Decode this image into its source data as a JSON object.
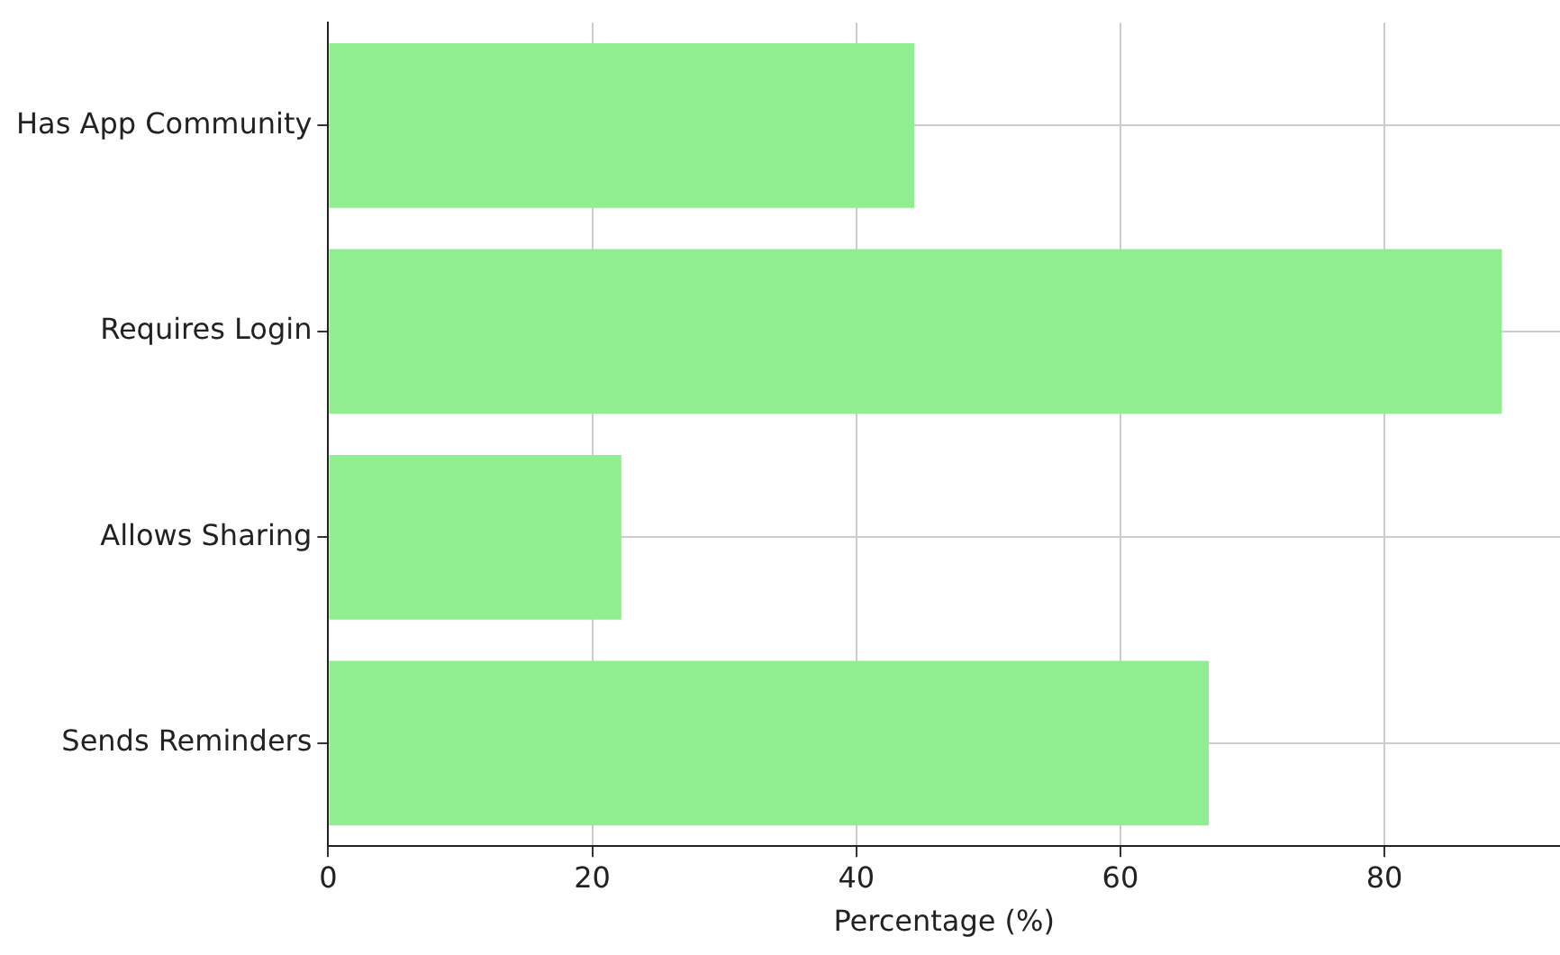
{
  "chart_data": {
    "type": "bar",
    "orientation": "horizontal",
    "xlabel": "Percentage (%)",
    "categories": [
      "Has App Community",
      "Requires Login",
      "Allows Sharing",
      "Sends Reminders"
    ],
    "values": [
      44.4,
      88.9,
      22.2,
      66.7
    ],
    "color": "#90ee90",
    "xlim": [
      0,
      93.3
    ],
    "xticks": [
      0,
      20,
      40,
      60,
      80
    ],
    "grid": true
  }
}
